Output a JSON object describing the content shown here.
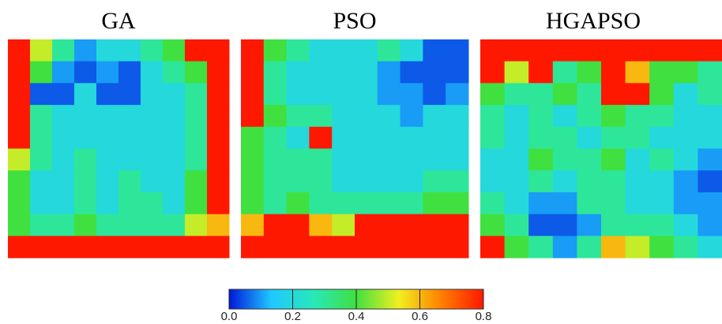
{
  "chart_data": [
    {
      "type": "heatmap",
      "title": "GA",
      "values": [
        [
          0.8,
          0.5,
          0.3,
          0.1,
          0.2,
          0.2,
          0.3,
          0.4,
          0.8,
          0.8
        ],
        [
          0.8,
          0.4,
          0.1,
          0.05,
          0.1,
          0.05,
          0.2,
          0.3,
          0.4,
          0.8
        ],
        [
          0.8,
          0.05,
          0.05,
          0.2,
          0.05,
          0.05,
          0.2,
          0.2,
          0.3,
          0.8
        ],
        [
          0.8,
          0.3,
          0.2,
          0.2,
          0.2,
          0.2,
          0.2,
          0.2,
          0.3,
          0.8
        ],
        [
          0.8,
          0.3,
          0.2,
          0.2,
          0.2,
          0.2,
          0.2,
          0.2,
          0.3,
          0.8
        ],
        [
          0.5,
          0.3,
          0.2,
          0.3,
          0.2,
          0.2,
          0.2,
          0.2,
          0.3,
          0.8
        ],
        [
          0.4,
          0.2,
          0.2,
          0.3,
          0.2,
          0.3,
          0.2,
          0.2,
          0.4,
          0.8
        ],
        [
          0.4,
          0.2,
          0.2,
          0.3,
          0.2,
          0.3,
          0.3,
          0.2,
          0.4,
          0.8
        ],
        [
          0.4,
          0.3,
          0.3,
          0.4,
          0.3,
          0.3,
          0.3,
          0.3,
          0.5,
          0.6
        ],
        [
          0.8,
          0.8,
          0.8,
          0.8,
          0.8,
          0.8,
          0.8,
          0.8,
          0.8,
          0.8
        ]
      ]
    },
    {
      "type": "heatmap",
      "title": "PSO",
      "values": [
        [
          0.8,
          0.4,
          0.3,
          0.2,
          0.2,
          0.2,
          0.3,
          0.2,
          0.05,
          0.05
        ],
        [
          0.8,
          0.3,
          0.2,
          0.2,
          0.2,
          0.2,
          0.1,
          0.05,
          0.05,
          0.05
        ],
        [
          0.8,
          0.3,
          0.2,
          0.2,
          0.2,
          0.2,
          0.1,
          0.1,
          0.05,
          0.1
        ],
        [
          0.8,
          0.4,
          0.3,
          0.3,
          0.2,
          0.2,
          0.2,
          0.1,
          0.2,
          0.2
        ],
        [
          0.4,
          0.3,
          0.2,
          0.8,
          0.2,
          0.2,
          0.2,
          0.2,
          0.2,
          0.2
        ],
        [
          0.4,
          0.3,
          0.3,
          0.3,
          0.2,
          0.2,
          0.2,
          0.2,
          0.2,
          0.2
        ],
        [
          0.4,
          0.3,
          0.3,
          0.3,
          0.2,
          0.2,
          0.2,
          0.2,
          0.3,
          0.3
        ],
        [
          0.4,
          0.3,
          0.4,
          0.3,
          0.3,
          0.3,
          0.3,
          0.3,
          0.4,
          0.4
        ],
        [
          0.6,
          0.8,
          0.8,
          0.6,
          0.5,
          0.8,
          0.8,
          0.8,
          0.8,
          0.8
        ],
        [
          0.8,
          0.8,
          0.8,
          0.8,
          0.8,
          0.8,
          0.8,
          0.8,
          0.8,
          0.8
        ]
      ]
    },
    {
      "type": "heatmap",
      "title": "HGAPSO",
      "values": [
        [
          0.8,
          0.8,
          0.8,
          0.8,
          0.8,
          0.8,
          0.8,
          0.8,
          0.8,
          0.8
        ],
        [
          0.8,
          0.5,
          0.8,
          0.3,
          0.4,
          0.8,
          0.6,
          0.4,
          0.4,
          0.3
        ],
        [
          0.4,
          0.3,
          0.3,
          0.4,
          0.3,
          0.8,
          0.8,
          0.4,
          0.2,
          0.3
        ],
        [
          0.3,
          0.2,
          0.3,
          0.2,
          0.3,
          0.4,
          0.3,
          0.3,
          0.2,
          0.2
        ],
        [
          0.3,
          0.2,
          0.3,
          0.3,
          0.2,
          0.3,
          0.3,
          0.2,
          0.2,
          0.2
        ],
        [
          0.2,
          0.2,
          0.4,
          0.3,
          0.3,
          0.4,
          0.2,
          0.3,
          0.2,
          0.1
        ],
        [
          0.2,
          0.2,
          0.3,
          0.2,
          0.3,
          0.3,
          0.2,
          0.2,
          0.1,
          0.05
        ],
        [
          0.3,
          0.2,
          0.1,
          0.1,
          0.3,
          0.3,
          0.2,
          0.2,
          0.1,
          0.1
        ],
        [
          0.4,
          0.3,
          0.05,
          0.05,
          0.1,
          0.3,
          0.3,
          0.3,
          0.2,
          0.1
        ],
        [
          0.8,
          0.4,
          0.3,
          0.1,
          0.3,
          0.6,
          0.5,
          0.4,
          0.3,
          0.2
        ]
      ]
    },
    {
      "type": "colorbar",
      "xlim": [
        0,
        0.8
      ],
      "xticks": [
        {
          "value": 0,
          "label": "0.0"
        },
        0.2,
        0.4,
        0.6,
        0.8
      ],
      "colors": [
        "#0018d8",
        "#20c8ff",
        "#28e8b8",
        "#40e040",
        "#f0f020",
        "#ff8000",
        "#ff1800"
      ]
    }
  ]
}
